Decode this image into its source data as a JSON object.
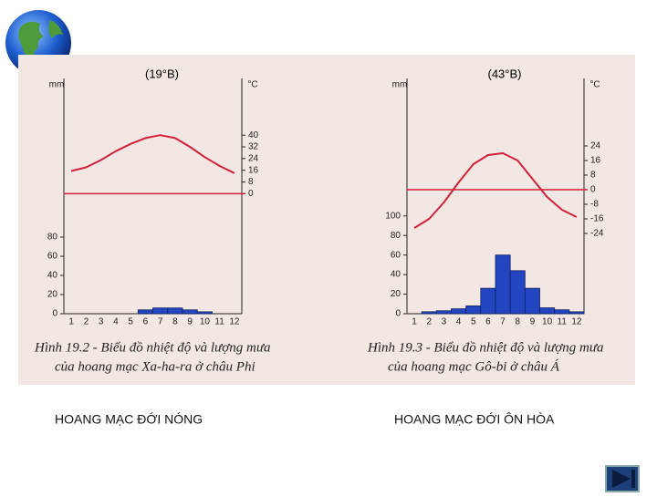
{
  "chart_data": [
    {
      "type": "bar",
      "title": "(19°B)",
      "y_label": "mm",
      "y2_label": "°C",
      "caption": [
        "Hình 19.2 - Biểu đồ nhiệt độ và lượng mưa",
        "của hoang mạc Xa-ha-ra ở châu Phi"
      ],
      "label": "HOANG MẠC ĐỚI NÓNG",
      "categories": [
        "1",
        "2",
        "3",
        "4",
        "5",
        "6",
        "7",
        "8",
        "9",
        "10",
        "11",
        "12"
      ],
      "series": [
        {
          "color": "#2346c0",
          "values": [
            0,
            0,
            0,
            0,
            0,
            4,
            6,
            6,
            4,
            2,
            0,
            0
          ]
        },
        {
          "type": "line",
          "axis": "y2",
          "color": "#d0203a",
          "values": [
            15.5,
            18,
            23,
            29,
            34,
            38,
            40,
            38,
            32,
            25,
            19,
            14
          ]
        }
      ],
      "ylim": [
        0,
        240
      ],
      "yticks": [
        0,
        20,
        40,
        60,
        80
      ],
      "y2lim": [
        -82,
        75
      ],
      "y2ticks": [
        0,
        8,
        16,
        24,
        32,
        40
      ],
      "zero_line": true
    },
    {
      "type": "bar",
      "title": "(43°B)",
      "y_label": "mm",
      "y2_label": "°C",
      "caption": [
        "Hình 19.3 - Biểu đồ nhiệt độ và lượng mưa",
        "của hoang mạc Gô-bi ở châu Á"
      ],
      "label": "HOANG MẠC ĐỚI ÔN HÒA",
      "categories": [
        "1",
        "2",
        "3",
        "4",
        "5",
        "6",
        "7",
        "8",
        "9",
        "10",
        "11",
        "12"
      ],
      "series": [
        {
          "color": "#2346c0",
          "values": [
            0,
            2,
            3,
            5,
            8,
            26,
            60,
            44,
            26,
            6,
            4,
            2
          ]
        },
        {
          "type": "line",
          "axis": "y2",
          "color": "#d0203a",
          "values": [
            -21,
            -16,
            -7,
            4,
            14,
            19,
            20,
            16,
            6,
            -4,
            -11,
            -15
          ]
        }
      ],
      "ylim": [
        0,
        235
      ],
      "yticks": [
        0,
        20,
        40,
        60,
        80,
        100
      ],
      "y2lim": [
        -68,
        58
      ],
      "y2ticks": [
        24,
        16,
        8,
        0,
        -8,
        -16,
        -24
      ],
      "zero_line": true
    }
  ]
}
